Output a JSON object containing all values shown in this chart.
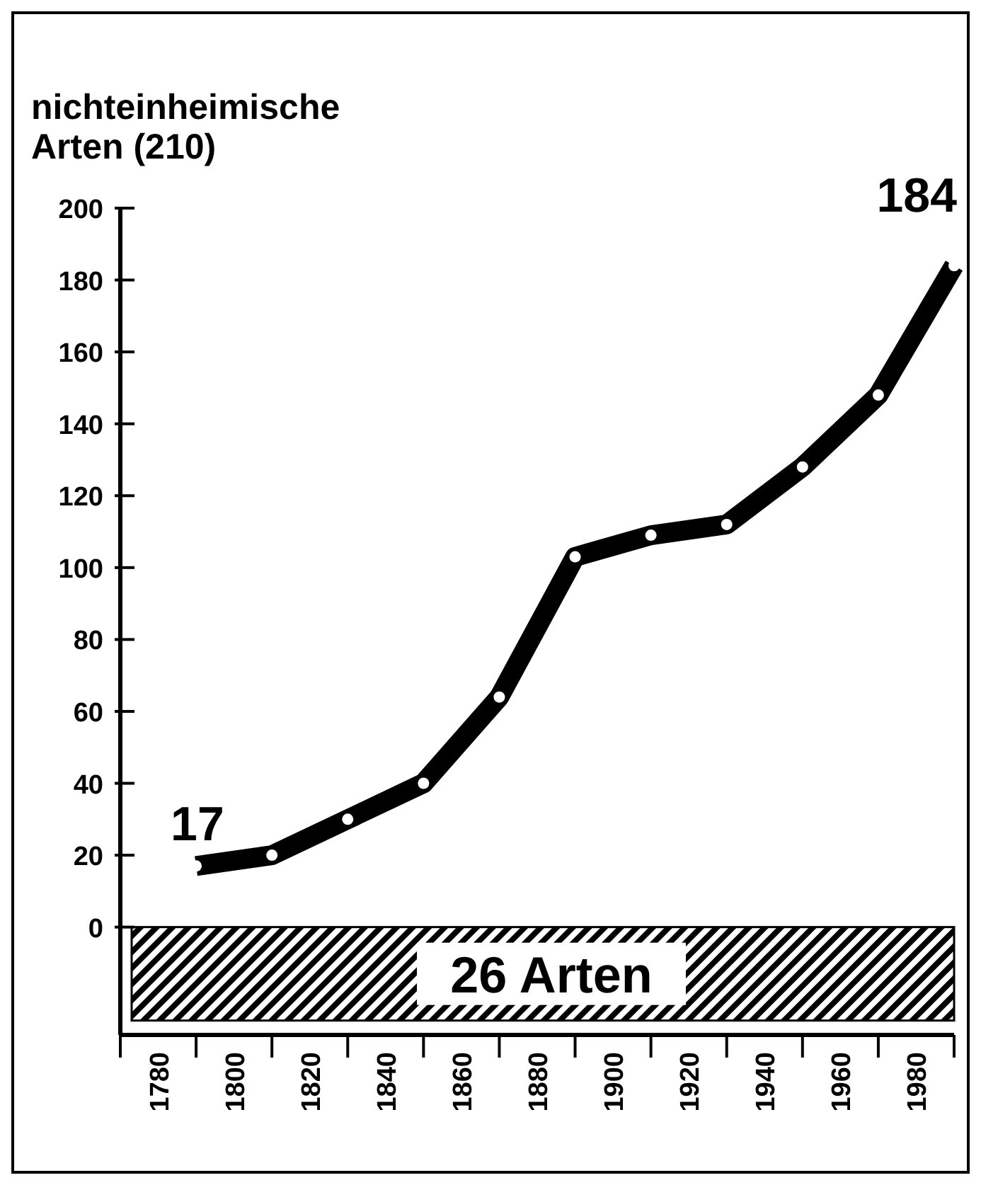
{
  "chart_data": {
    "type": "line",
    "title": "nichteinheimische\nArten (210)",
    "x": [
      1790,
      1810,
      1830,
      1850,
      1870,
      1890,
      1910,
      1930,
      1950,
      1970,
      1990
    ],
    "series": [
      {
        "color": "#000000",
        "values": [
          17,
          20,
          30,
          40,
          64,
          103,
          109,
          112,
          128,
          148,
          184
        ]
      }
    ],
    "marker": "circle",
    "line_style": "solid",
    "grid": false,
    "xlim": [
      1770,
      1990
    ],
    "xticks": [
      {
        "value": 1770,
        "label": null
      },
      {
        "value": 1780,
        "label": "1780"
      },
      {
        "value": 1790,
        "label": null
      },
      {
        "value": 1800,
        "label": "1800"
      },
      {
        "value": 1810,
        "label": null
      },
      {
        "value": 1820,
        "label": "1820"
      },
      {
        "value": 1830,
        "label": null
      },
      {
        "value": 1840,
        "label": "1840"
      },
      {
        "value": 1850,
        "label": null
      },
      {
        "value": 1860,
        "label": "1860"
      },
      {
        "value": 1870,
        "label": null
      },
      {
        "value": 1880,
        "label": "1880"
      },
      {
        "value": 1890,
        "label": null
      },
      {
        "value": 1900,
        "label": "1900"
      },
      {
        "value": 1910,
        "label": null
      },
      {
        "value": 1920,
        "label": "1920"
      },
      {
        "value": 1930,
        "label": null
      },
      {
        "value": 1940,
        "label": "1940"
      },
      {
        "value": 1950,
        "label": null
      },
      {
        "value": 1960,
        "label": "1960"
      },
      {
        "value": 1970,
        "label": null
      },
      {
        "value": 1980,
        "label": "1980"
      },
      {
        "value": 1990,
        "label": null
      }
    ],
    "ylim": [
      -30,
      200
    ],
    "yticks": [
      0,
      20,
      40,
      60,
      80,
      100,
      120,
      140,
      160,
      180,
      200
    ],
    "bands": [
      {
        "axis": "y",
        "from": -26,
        "to": 0,
        "label": "26 Arten"
      }
    ],
    "annotations": [
      {
        "text": "17",
        "x": 1790,
        "y": 17
      },
      {
        "text": "184",
        "x": 1990,
        "y": 184
      }
    ]
  }
}
